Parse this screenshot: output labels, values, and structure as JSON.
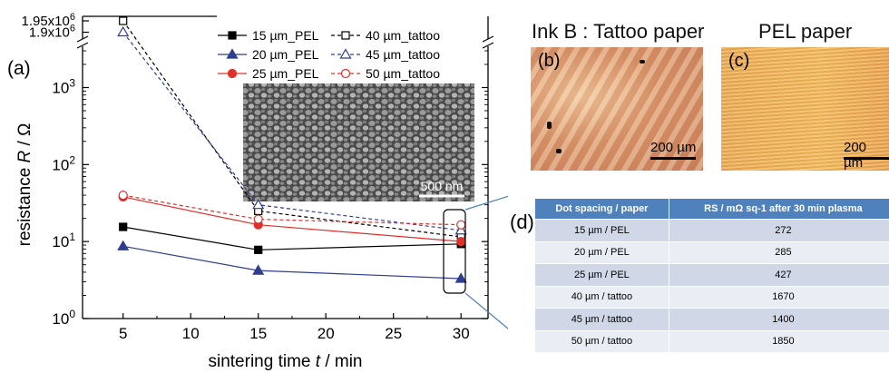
{
  "chart_data": {
    "type": "line",
    "panel_label": "(a)",
    "xlabel": "sintering time t / min",
    "ylabel": "resistance R / Ω",
    "xlim": [
      2,
      32
    ],
    "xticks": [
      "5",
      "10",
      "15",
      "20",
      "25",
      "30"
    ],
    "yscale": "log",
    "ylim": [
      1,
      3000
    ],
    "yticks": [
      "10^0",
      "10^1",
      "10^2",
      "10^3"
    ],
    "y_break_ticks": [
      "1.9x10^6",
      "1.95x10^6"
    ],
    "legend_position": "top-right",
    "x": [
      5,
      15,
      30
    ],
    "series": [
      {
        "name": "15 µm_PEL",
        "values": [
          15.5,
          7.8,
          9.3
        ],
        "color": "#000000",
        "marker": "square",
        "filled": true,
        "dashed": false
      },
      {
        "name": "40 µm_tattoo",
        "values": [
          1950000,
          25,
          11.5
        ],
        "color": "#000000",
        "marker": "square",
        "filled": false,
        "dashed": true
      },
      {
        "name": "20 µm_PEL",
        "values": [
          8.7,
          4.2,
          3.3
        ],
        "color": "#2e3d8f",
        "marker": "triangle",
        "filled": true,
        "dashed": false
      },
      {
        "name": "45 µm_tattoo",
        "values": [
          1900000,
          30,
          14
        ],
        "color": "#2e3d8f",
        "marker": "triangle",
        "filled": false,
        "dashed": true
      },
      {
        "name": "25 µm_PEL",
        "values": [
          38,
          16.5,
          10
        ],
        "color": "#e0302b",
        "marker": "circle",
        "filled": true,
        "dashed": false
      },
      {
        "name": "50 µm_tattoo",
        "values": [
          40,
          19.5,
          16.5
        ],
        "color": "#e0302b",
        "marker": "circle",
        "filled": false,
        "dashed": true
      }
    ],
    "inset_scale_label": "500 nm"
  },
  "photos": {
    "tattoo": {
      "title": "Ink B : Tattoo paper",
      "panel": "(b)",
      "scale": "200 µm"
    },
    "pel": {
      "title": "PEL paper",
      "panel": "(c)",
      "scale": "200 µm"
    }
  },
  "table": {
    "panel": "(d)",
    "headers": [
      "Dot spacing / paper",
      "RS / mΩ sq-1 after 30 min plasma"
    ],
    "rows": [
      [
        "15 µm / PEL",
        "272"
      ],
      [
        "20 µm / PEL",
        "285"
      ],
      [
        "25 µm / PEL",
        "427"
      ],
      [
        "40 µm / tattoo",
        "1670"
      ],
      [
        "45 µm / tattoo",
        "1400"
      ],
      [
        "50 µm / tattoo",
        "1850"
      ]
    ]
  }
}
